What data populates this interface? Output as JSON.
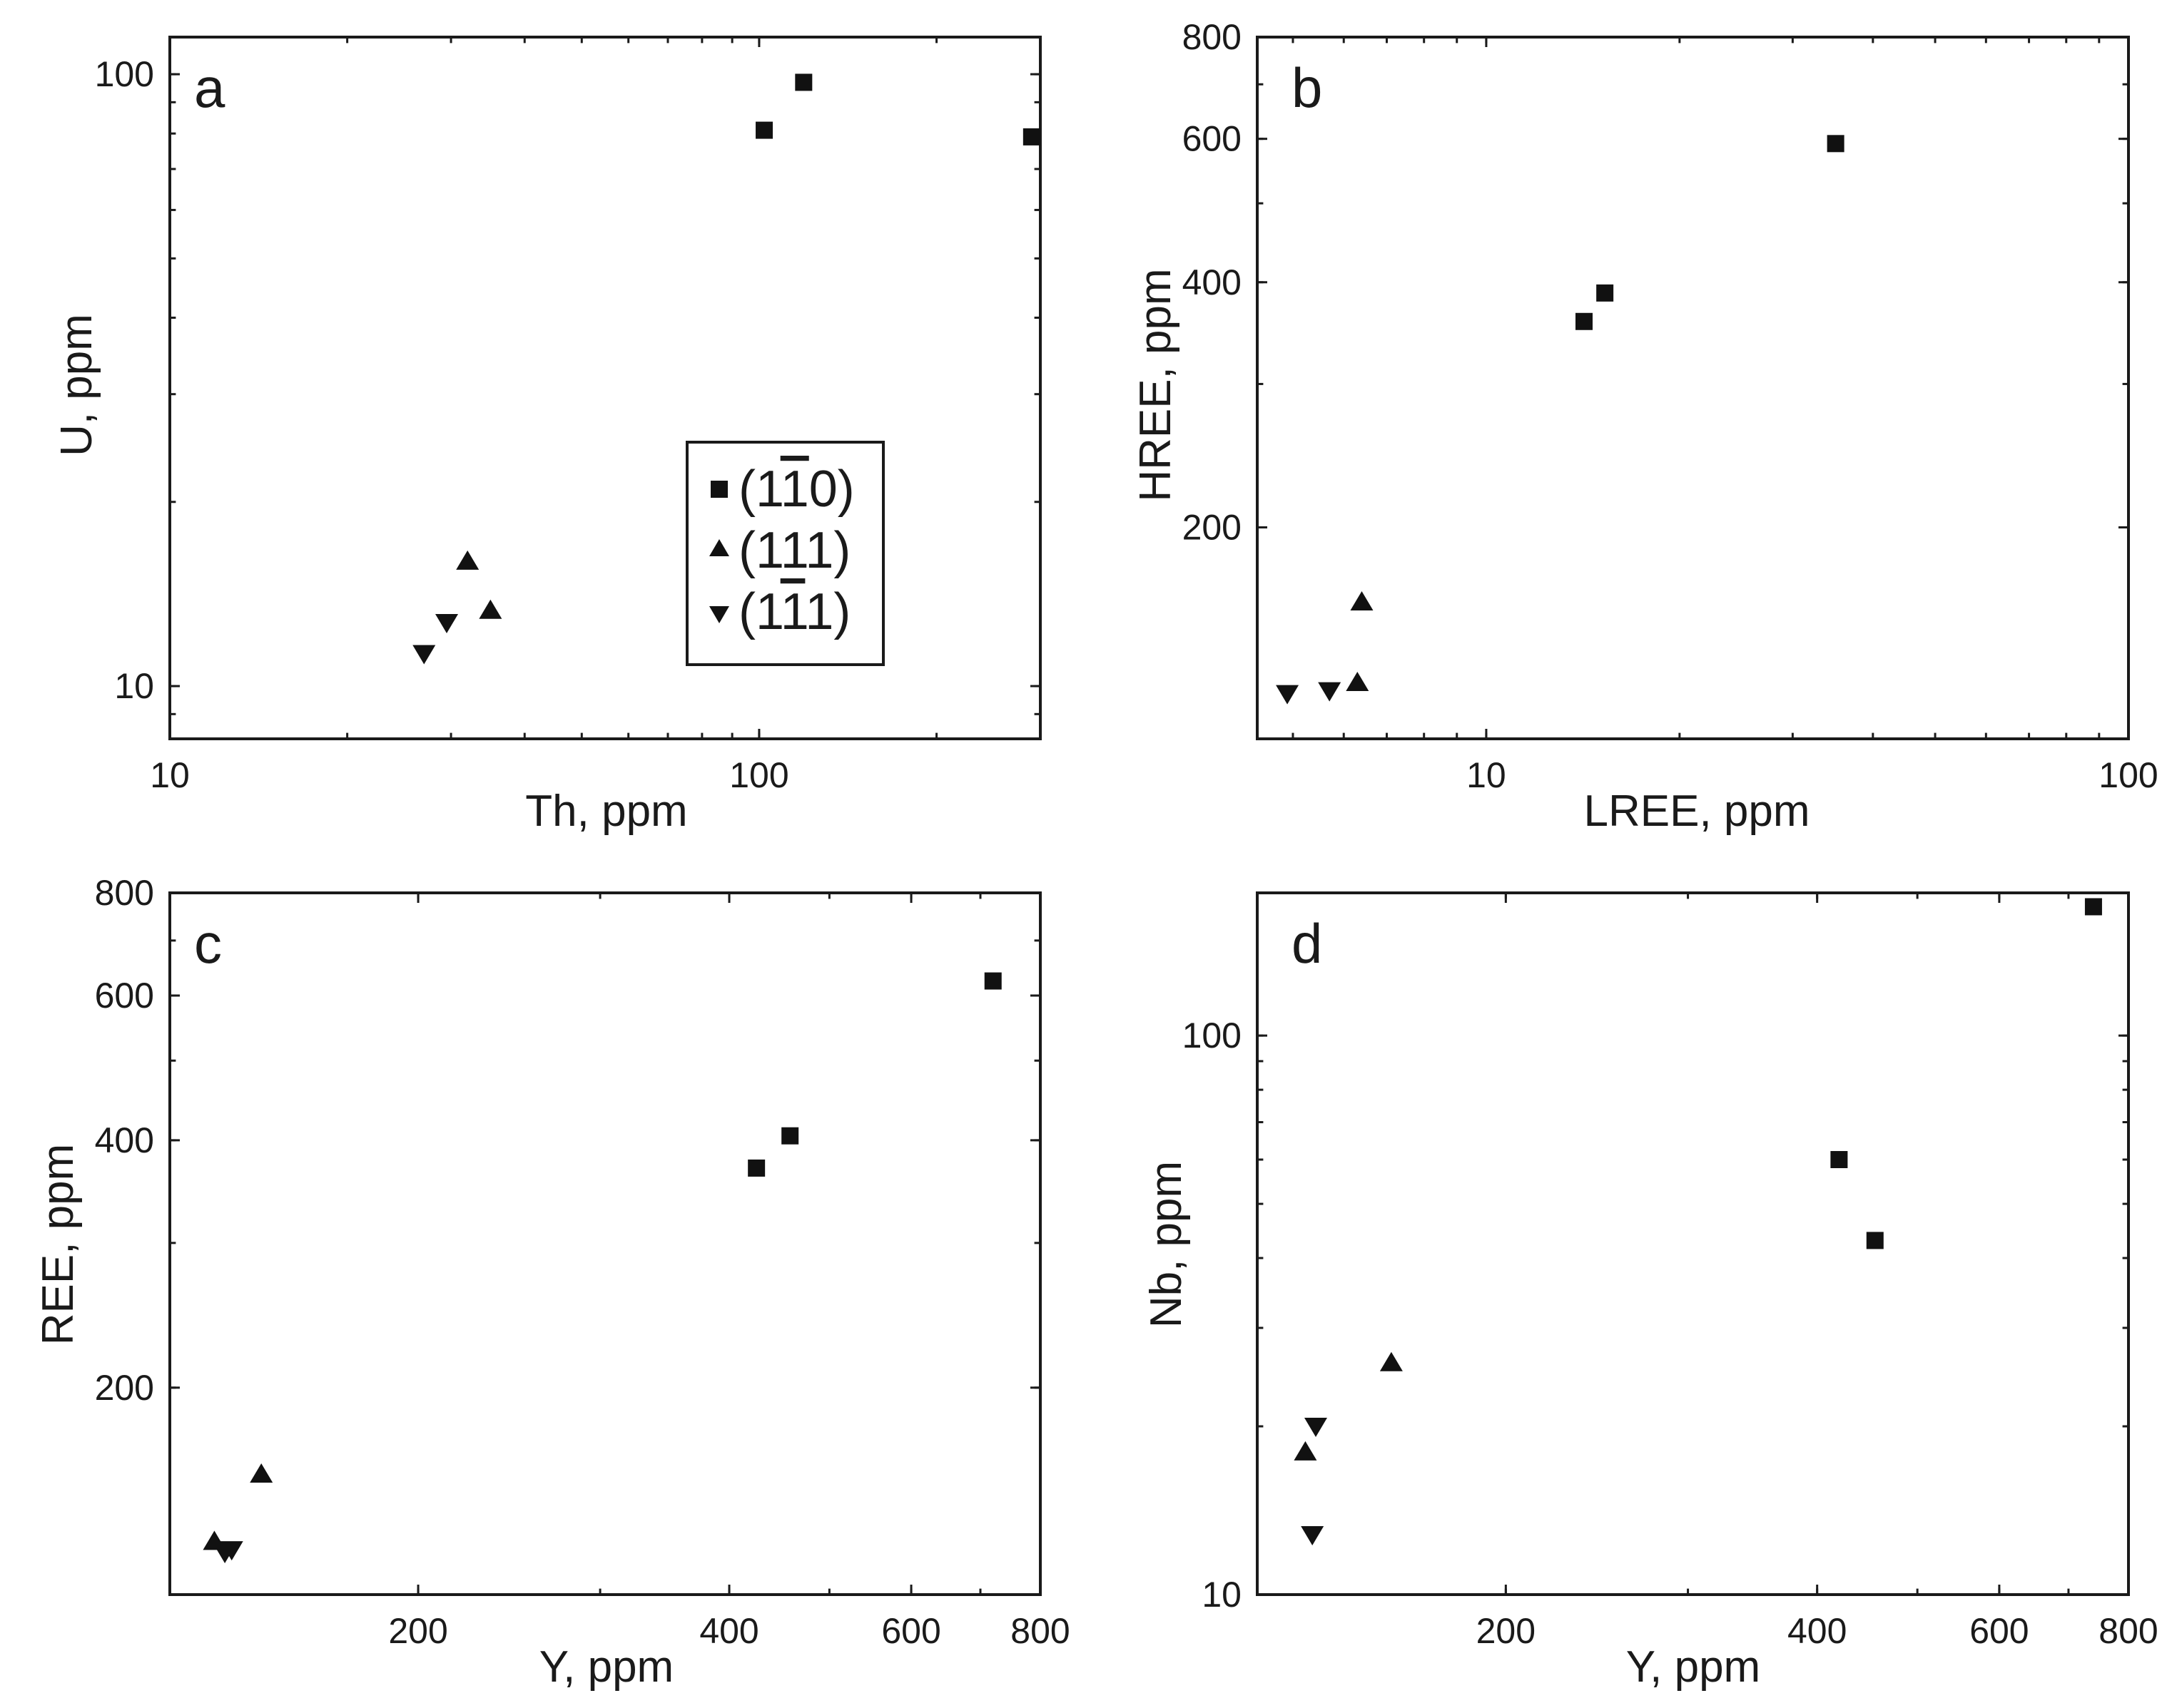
{
  "colors": {
    "ink": "#1a1a1a",
    "marker": "#111111",
    "background": "#ffffff"
  },
  "legend": {
    "items": [
      {
        "label_prefix": "(1",
        "label_bar": "1",
        "label_suffix": "0)",
        "label_full": "(1̅1̅0)",
        "marker": "square"
      },
      {
        "label_prefix": "(1",
        "label_bar": "1",
        "label_suffix": "1)",
        "label_full": "(1̅11)",
        "marker": "triangle-up"
      },
      {
        "label_prefix": "(1",
        "label_bar": "1",
        "label_suffix": "1)",
        "label_full": "(11̅1)",
        "marker": "triangle-down"
      }
    ]
  },
  "chart_data": [
    {
      "id": "a",
      "letter": "a",
      "type": "scatter",
      "xscale": "log",
      "yscale": "log",
      "xlabel": "Th, ppm",
      "ylabel": "U, ppm",
      "xlim": [
        10,
        300
      ],
      "ylim": [
        8.2,
        115
      ],
      "xticks": [
        {
          "v": 10,
          "t": "10"
        },
        {
          "v": 100,
          "t": "100"
        }
      ],
      "yticks": [
        {
          "v": 10,
          "t": "10"
        },
        {
          "v": 100,
          "t": "100"
        }
      ],
      "has_legend": true,
      "series": [
        {
          "name": "(110)",
          "marker": "square",
          "points": [
            [
              102,
              81
            ],
            [
              119,
              97
            ],
            [
              290,
              79
            ]
          ]
        },
        {
          "name": "(111)",
          "marker": "triangle-up",
          "points": [
            [
              32,
              16
            ],
            [
              35,
              13.3
            ]
          ]
        },
        {
          "name": "(1̅1̅1)",
          "marker": "triangle-down",
          "points": [
            [
              27,
              11.3
            ],
            [
              29.5,
              12.7
            ]
          ]
        }
      ]
    },
    {
      "id": "b",
      "letter": "b",
      "type": "scatter",
      "xscale": "log",
      "yscale": "log",
      "xlabel": "LREE, ppm",
      "ylabel": "HREE, ppm",
      "xlim": [
        4.4,
        100
      ],
      "ylim": [
        110,
        800
      ],
      "xticks": [
        {
          "v": 10,
          "t": "10"
        },
        {
          "v": 100,
          "t": "100"
        }
      ],
      "yticks": [
        {
          "v": 200,
          "t": "200"
        },
        {
          "v": 400,
          "t": "400"
        },
        {
          "v": 600,
          "t": "600"
        },
        {
          "v": 800,
          "t": "800"
        }
      ],
      "has_legend": false,
      "series": [
        {
          "name": "(110)",
          "marker": "square",
          "points": [
            [
              14.2,
              358
            ],
            [
              15.3,
              388
            ],
            [
              35,
              592
            ]
          ]
        },
        {
          "name": "(111)",
          "marker": "triangle-up",
          "points": [
            [
              6.4,
              162
            ],
            [
              6.3,
              129
            ]
          ]
        },
        {
          "name": "(1̅1̅1)",
          "marker": "triangle-down",
          "points": [
            [
              4.9,
              125
            ],
            [
              5.7,
              126
            ]
          ]
        }
      ]
    },
    {
      "id": "c",
      "letter": "c",
      "type": "scatter",
      "xscale": "log",
      "yscale": "log",
      "xlabel": "Y, ppm",
      "ylabel": "REE, ppm",
      "xlim": [
        115,
        800
      ],
      "ylim": [
        112,
        800
      ],
      "xticks": [
        {
          "v": 200,
          "t": "200"
        },
        {
          "v": 400,
          "t": "400"
        },
        {
          "v": 600,
          "t": "600"
        },
        {
          "v": 800,
          "t": "800"
        }
      ],
      "yticks": [
        {
          "v": 200,
          "t": "200"
        },
        {
          "v": 400,
          "t": "400"
        },
        {
          "v": 600,
          "t": "600"
        },
        {
          "v": 800,
          "t": "800"
        }
      ],
      "has_legend": false,
      "series": [
        {
          "name": "(110)",
          "marker": "square",
          "points": [
            [
              425,
              370
            ],
            [
              458,
              405
            ],
            [
              720,
              625
            ]
          ]
        },
        {
          "name": "(111)",
          "marker": "triangle-up",
          "points": [
            [
              141,
              157
            ],
            [
              127,
              130
            ]
          ]
        },
        {
          "name": "(1̅1̅1)",
          "marker": "triangle-down",
          "points": [
            [
              130,
              126
            ],
            [
              132,
              127
            ]
          ]
        }
      ]
    },
    {
      "id": "d",
      "letter": "d",
      "type": "scatter",
      "xscale": "log",
      "yscale": "log",
      "xlabel": "Y, ppm",
      "ylabel": "Nb, ppm",
      "xlim": [
        115,
        800
      ],
      "ylim": [
        10,
        180
      ],
      "xticks": [
        {
          "v": 200,
          "t": "200"
        },
        {
          "v": 400,
          "t": "400"
        },
        {
          "v": 600,
          "t": "600"
        },
        {
          "v": 800,
          "t": "800"
        }
      ],
      "yticks": [
        {
          "v": 10,
          "t": "10"
        },
        {
          "v": 100,
          "t": "100"
        }
      ],
      "has_legend": false,
      "series": [
        {
          "name": "(110)",
          "marker": "square",
          "points": [
            [
              420,
              60
            ],
            [
              455,
              43
            ],
            [
              740,
              170
            ]
          ]
        },
        {
          "name": "(111)",
          "marker": "triangle-up",
          "points": [
            [
              155,
              26
            ],
            [
              128,
              18
            ]
          ]
        },
        {
          "name": "(1̅1̅1)",
          "marker": "triangle-down",
          "points": [
            [
              131,
              20
            ],
            [
              130,
              12.8
            ]
          ]
        }
      ]
    }
  ]
}
